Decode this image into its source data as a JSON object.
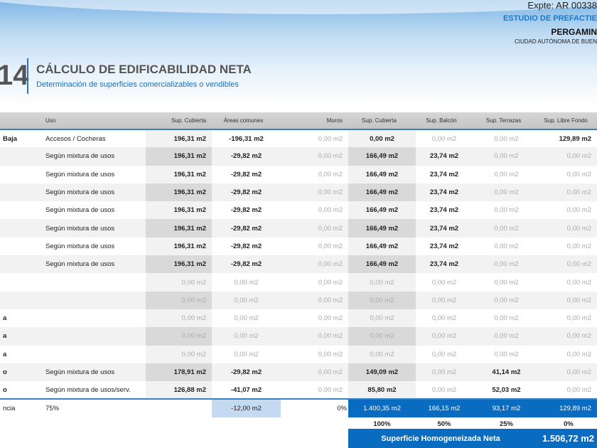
{
  "header": {
    "expte": "Expte: AR 00338",
    "estudio": "ESTUDIO DE PREFACTIE",
    "city": "PERGAMIN",
    "caba": "CIUDAD AUTÓNOMA DE BUEN"
  },
  "section": {
    "number": "14",
    "title": "CÁLCULO DE EDIFICABILIDAD NETA",
    "subtitle": "Determinación de superficies comercializables o vendibles"
  },
  "columns": [
    "",
    "Uso",
    "Sup. Cubierta",
    "Áreas comunes",
    "Muros",
    "Sup. Cubierta",
    "Sup. Balcón",
    "Sup. Terrazas",
    "Sup. Libre Fondo"
  ],
  "rows": [
    {
      "label": "Baja",
      "uso": "Accesos / Cocheras",
      "cells": [
        "196,31 m2",
        "-196,31 m2",
        "0,00 m2",
        "0,00 m2",
        "0,00 m2",
        "0,00 m2",
        "129,89 m2"
      ],
      "strong": [
        1,
        1,
        0,
        1,
        0,
        0,
        1
      ]
    },
    {
      "label": "",
      "uso": "Según mixtura de usos",
      "cells": [
        "196,31 m2",
        "-29,82 m2",
        "0,00 m2",
        "166,49 m2",
        "23,74 m2",
        "0,00 m2",
        "0,00 m2"
      ],
      "strong": [
        1,
        1,
        0,
        1,
        1,
        0,
        0
      ]
    },
    {
      "label": "",
      "uso": "Según mixtura de usos",
      "cells": [
        "196,31 m2",
        "-29,82 m2",
        "0,00 m2",
        "166,49 m2",
        "23,74 m2",
        "0,00 m2",
        "0,00 m2"
      ],
      "strong": [
        1,
        1,
        0,
        1,
        1,
        0,
        0
      ]
    },
    {
      "label": "",
      "uso": "Según mixtura de usos",
      "cells": [
        "196,31 m2",
        "-29,82 m2",
        "0,00 m2",
        "166,49 m2",
        "23,74 m2",
        "0,00 m2",
        "0,00 m2"
      ],
      "strong": [
        1,
        1,
        0,
        1,
        1,
        0,
        0
      ]
    },
    {
      "label": "",
      "uso": "Según mixtura de usos",
      "cells": [
        "196,31 m2",
        "-29,82 m2",
        "0,00 m2",
        "166,49 m2",
        "23,74 m2",
        "0,00 m2",
        "0,00 m2"
      ],
      "strong": [
        1,
        1,
        0,
        1,
        1,
        0,
        0
      ]
    },
    {
      "label": "",
      "uso": "Según mixtura de usos",
      "cells": [
        "196,31 m2",
        "-29,82 m2",
        "0,00 m2",
        "166,49 m2",
        "23,74 m2",
        "0,00 m2",
        "0,00 m2"
      ],
      "strong": [
        1,
        1,
        0,
        1,
        1,
        0,
        0
      ]
    },
    {
      "label": "",
      "uso": "Según mixtura de usos",
      "cells": [
        "196,31 m2",
        "-29,82 m2",
        "0,00 m2",
        "166,49 m2",
        "23,74 m2",
        "0,00 m2",
        "0,00 m2"
      ],
      "strong": [
        1,
        1,
        0,
        1,
        1,
        0,
        0
      ]
    },
    {
      "label": "",
      "uso": "Según mixtura de usos",
      "cells": [
        "196,31 m2",
        "-29,82 m2",
        "0,00 m2",
        "166,49 m2",
        "23,74 m2",
        "0,00 m2",
        "0,00 m2"
      ],
      "strong": [
        1,
        1,
        0,
        1,
        1,
        0,
        0
      ]
    },
    {
      "label": "",
      "uso": "",
      "cells": [
        "0,00 m2",
        "0,00 m2",
        "0,00 m2",
        "0,00 m2",
        "0,00 m2",
        "0,00 m2",
        "0,00 m2"
      ],
      "strong": [
        0,
        0,
        0,
        0,
        0,
        0,
        0
      ]
    },
    {
      "label": "",
      "uso": "",
      "cells": [
        "0,00 m2",
        "0,00 m2",
        "0,00 m2",
        "0,00 m2",
        "0,00 m2",
        "0,00 m2",
        "0,00 m2"
      ],
      "strong": [
        0,
        0,
        0,
        0,
        0,
        0,
        0
      ]
    },
    {
      "label": "a",
      "uso": "",
      "cells": [
        "0,00 m2",
        "0,00 m2",
        "0,00 m2",
        "0,00 m2",
        "0,00 m2",
        "0,00 m2",
        "0,00 m2"
      ],
      "strong": [
        0,
        0,
        0,
        0,
        0,
        0,
        0
      ]
    },
    {
      "label": "a",
      "uso": "",
      "cells": [
        "0,00 m2",
        "0,00 m2",
        "0,00 m2",
        "0,00 m2",
        "0,00 m2",
        "0,00 m2",
        "0,00 m2"
      ],
      "strong": [
        0,
        0,
        0,
        0,
        0,
        0,
        0
      ]
    },
    {
      "label": "a",
      "uso": "",
      "cells": [
        "0,00 m2",
        "0,00 m2",
        "0,00 m2",
        "0,00 m2",
        "0,00 m2",
        "0,00 m2",
        "0,00 m2"
      ],
      "strong": [
        0,
        0,
        0,
        0,
        0,
        0,
        0
      ]
    },
    {
      "label": "o",
      "uso": "Según mixtura de usos",
      "cells": [
        "178,91 m2",
        "-29,82 m2",
        "0,00 m2",
        "149,09 m2",
        "0,00 m2",
        "41,14 m2",
        "0,00 m2"
      ],
      "strong": [
        1,
        1,
        0,
        1,
        0,
        1,
        0
      ]
    },
    {
      "label": "o",
      "uso": "Según mixtura de usos/serv.",
      "cells": [
        "126,88 m2",
        "-41,07 m2",
        "0,00 m2",
        "85,80 m2",
        "0,00 m2",
        "52,03 m2",
        "0,00 m2"
      ],
      "strong": [
        1,
        1,
        0,
        1,
        0,
        1,
        0
      ]
    }
  ],
  "totals": {
    "label": "ncia",
    "uso": "75%",
    "cubierta": "",
    "comunes": "-12,00 m2",
    "muros": "0%",
    "sup_cubierta": "1.400,35 m2",
    "balcon": "166,15 m2",
    "terrazas": "93,17 m2",
    "libre": "129,89 m2"
  },
  "percents": {
    "cubierta": "100%",
    "balcon": "50%",
    "terrazas": "25%",
    "libre": "0%"
  },
  "final": {
    "label": "Superficie Homogeneizada Neta",
    "value": "1.506,72 m2"
  }
}
